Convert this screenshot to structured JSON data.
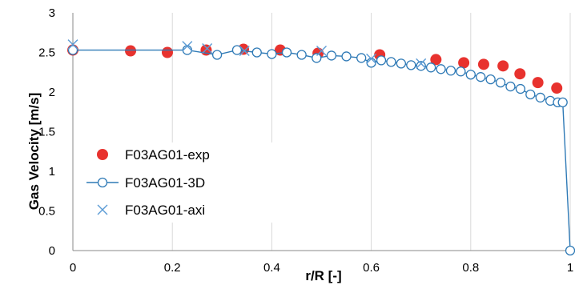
{
  "chart_data": {
    "type": "scatter",
    "xlabel": "r/R [-]",
    "ylabel": "Gas Velocity [m/s]",
    "xlim": [
      0,
      1
    ],
    "ylim": [
      0,
      3
    ],
    "x_ticks": [
      "0",
      "0.2",
      "0.4",
      "0.6",
      "0.8",
      "1"
    ],
    "y_ticks": [
      "0",
      "0.5",
      "1",
      "1.5",
      "2",
      "2.5",
      "3"
    ],
    "grid": "vertical gridlines only",
    "legend_position": "left",
    "series": [
      {
        "name": "F03AG01-exp",
        "marker": "filled-circle",
        "color": "#e8322e",
        "line": false,
        "x": [
          0.0,
          0.116,
          0.19,
          0.268,
          0.343,
          0.417,
          0.493,
          0.617,
          0.73,
          0.786,
          0.826,
          0.865,
          0.899,
          0.935,
          0.973
        ],
        "y": [
          2.53,
          2.52,
          2.5,
          2.53,
          2.54,
          2.53,
          2.49,
          2.47,
          2.41,
          2.37,
          2.35,
          2.33,
          2.23,
          2.12,
          2.05
        ]
      },
      {
        "name": "F03AG01-3D",
        "marker": "hollow-circle",
        "color": "#2f7ab6",
        "line": true,
        "x": [
          0.0,
          0.23,
          0.29,
          0.33,
          0.37,
          0.4,
          0.43,
          0.46,
          0.49,
          0.52,
          0.55,
          0.58,
          0.6,
          0.62,
          0.64,
          0.66,
          0.68,
          0.7,
          0.72,
          0.74,
          0.76,
          0.78,
          0.8,
          0.82,
          0.84,
          0.86,
          0.88,
          0.9,
          0.92,
          0.94,
          0.96,
          0.975,
          0.985,
          1.0
        ],
        "y": [
          2.53,
          2.53,
          2.47,
          2.53,
          2.5,
          2.48,
          2.5,
          2.47,
          2.43,
          2.46,
          2.45,
          2.43,
          2.37,
          2.4,
          2.38,
          2.36,
          2.34,
          2.33,
          2.31,
          2.29,
          2.27,
          2.26,
          2.22,
          2.19,
          2.16,
          2.12,
          2.07,
          2.04,
          1.97,
          1.93,
          1.89,
          1.87,
          1.87,
          0.0
        ]
      },
      {
        "name": "F03AG01-axi",
        "marker": "cross",
        "color": "#5b9bd5",
        "line": false,
        "x": [
          0.0,
          0.23,
          0.27,
          0.345,
          0.5,
          0.6,
          0.7
        ],
        "y": [
          2.6,
          2.58,
          2.55,
          2.52,
          2.52,
          2.42,
          2.36
        ]
      }
    ]
  }
}
